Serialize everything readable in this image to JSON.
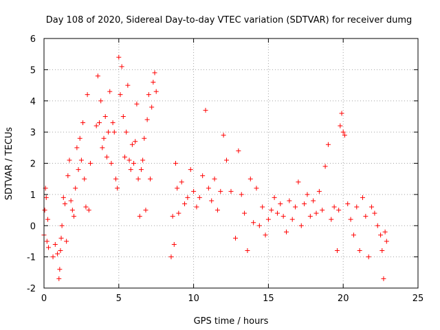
{
  "chart_data": {
    "type": "scatter",
    "title": "Day 108 of 2020, Sidereal Day-to-day VTEC variation (SDTVAR) for receiver dumg",
    "xlabel": "GPS time / hours",
    "ylabel": "SDTVAR / TECUs",
    "xlim": [
      0,
      25
    ],
    "ylim": [
      -2,
      6
    ],
    "xticks": [
      0,
      5,
      10,
      15,
      20,
      25
    ],
    "yticks": [
      -2,
      -1,
      0,
      1,
      2,
      3,
      4,
      5,
      6
    ],
    "grid": true,
    "marker": "+",
    "color": "#ff0000",
    "series": [
      {
        "name": "SDTVAR",
        "x": [
          0.0,
          0.05,
          0.1,
          0.15,
          0.2,
          0.25,
          0.3,
          0.6,
          0.75,
          0.9,
          1.0,
          1.05,
          1.1,
          1.15,
          1.2,
          1.3,
          1.4,
          1.5,
          1.6,
          1.7,
          1.8,
          1.9,
          2.0,
          2.1,
          2.2,
          2.3,
          2.4,
          2.5,
          2.6,
          2.7,
          2.8,
          2.9,
          3.0,
          3.1,
          3.5,
          3.6,
          3.7,
          3.8,
          3.9,
          4.0,
          4.1,
          4.2,
          4.3,
          4.4,
          4.5,
          4.6,
          4.7,
          4.8,
          4.9,
          5.0,
          5.1,
          5.2,
          5.3,
          5.4,
          5.5,
          5.6,
          5.7,
          5.8,
          5.9,
          6.0,
          6.1,
          6.2,
          6.3,
          6.4,
          6.5,
          6.6,
          6.7,
          6.8,
          6.9,
          7.0,
          7.1,
          7.2,
          7.3,
          7.4,
          7.5,
          8.5,
          8.6,
          8.7,
          8.8,
          8.9,
          9.0,
          9.2,
          9.4,
          9.6,
          9.8,
          10.0,
          10.2,
          10.4,
          10.6,
          10.8,
          11.0,
          11.2,
          11.4,
          11.6,
          11.8,
          12.0,
          12.2,
          12.5,
          12.8,
          13.0,
          13.2,
          13.4,
          13.6,
          13.8,
          14.0,
          14.2,
          14.4,
          14.6,
          14.8,
          15.0,
          15.2,
          15.4,
          15.6,
          15.8,
          16.0,
          16.2,
          16.4,
          16.6,
          16.8,
          17.0,
          17.2,
          17.4,
          17.6,
          17.8,
          18.0,
          18.2,
          18.4,
          18.6,
          18.8,
          19.0,
          19.2,
          19.4,
          19.6,
          19.7,
          19.8,
          19.9,
          20.0,
          20.1,
          20.3,
          20.5,
          20.7,
          20.9,
          21.1,
          21.3,
          21.5,
          21.7,
          21.9,
          22.1,
          22.3,
          22.5,
          22.6,
          22.7,
          22.8,
          22.9
        ],
        "y": [
          -0.3,
          0.5,
          1.2,
          0.9,
          -0.5,
          0.2,
          -0.7,
          -1.0,
          -0.6,
          -0.9,
          -1.7,
          -1.4,
          -0.8,
          -0.4,
          0.0,
          0.9,
          0.7,
          -0.5,
          1.6,
          2.1,
          0.8,
          0.5,
          0.3,
          1.2,
          2.5,
          1.8,
          2.8,
          2.1,
          3.3,
          1.5,
          0.6,
          4.2,
          0.5,
          2.0,
          3.2,
          4.8,
          3.3,
          4.0,
          2.5,
          2.8,
          3.5,
          2.2,
          3.0,
          4.3,
          2.0,
          3.3,
          3.0,
          1.5,
          1.2,
          5.4,
          4.2,
          5.1,
          3.5,
          2.2,
          3.0,
          4.5,
          2.1,
          1.8,
          2.6,
          2.0,
          2.7,
          3.9,
          1.5,
          0.3,
          1.8,
          2.1,
          2.8,
          0.5,
          3.4,
          4.2,
          1.5,
          3.8,
          4.6,
          4.9,
          4.3,
          -1.0,
          0.3,
          -0.6,
          2.0,
          1.2,
          0.4,
          1.4,
          0.7,
          0.9,
          1.8,
          1.1,
          0.6,
          0.9,
          1.6,
          3.7,
          1.2,
          0.8,
          1.5,
          0.5,
          1.1,
          2.9,
          2.1,
          1.1,
          -0.4,
          2.4,
          1.0,
          0.4,
          -0.8,
          1.5,
          0.1,
          1.2,
          0.0,
          0.6,
          -0.3,
          0.2,
          0.5,
          0.9,
          0.4,
          0.7,
          0.3,
          -0.2,
          0.8,
          0.2,
          0.6,
          1.4,
          0.0,
          0.7,
          1.0,
          0.3,
          0.8,
          0.4,
          1.1,
          0.5,
          1.9,
          2.6,
          0.2,
          0.6,
          -0.8,
          0.5,
          3.2,
          3.6,
          3.0,
          2.9,
          0.7,
          0.2,
          -0.3,
          0.6,
          -0.8,
          0.9,
          0.3,
          -1.0,
          0.6,
          0.4,
          0.0,
          -0.3,
          -0.8,
          -1.7,
          -0.2,
          -0.5
        ]
      }
    ]
  }
}
